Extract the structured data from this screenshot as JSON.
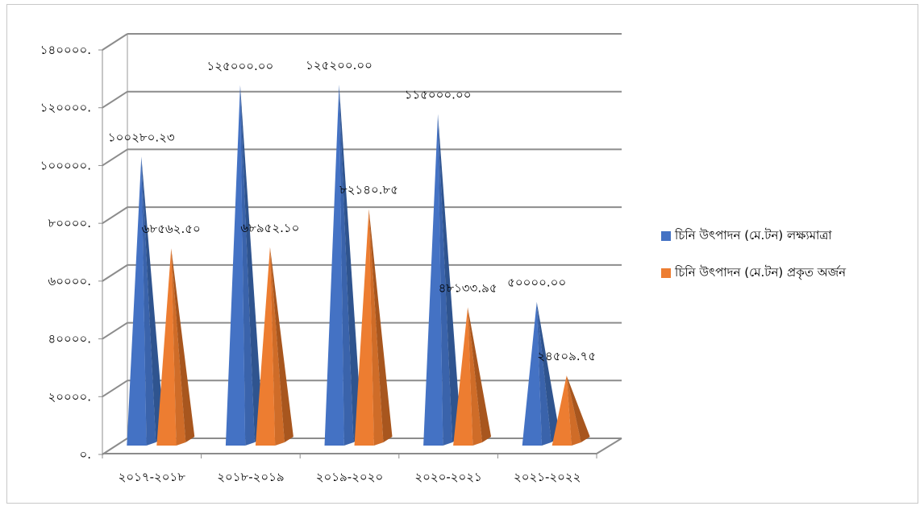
{
  "chart_data": {
    "type": "bar",
    "categories": [
      "২০১৭-২০১৮",
      "২০১৮-২০১৯",
      "২০১৯-২০২০",
      "২০২০-২০২১",
      "২০২১-২০২২"
    ],
    "series": [
      {
        "name": "চিনি উৎপাদন (মে.টন) লক্ষ্যমাত্রা",
        "color": "#4472C4",
        "values": [
          100280.23,
          125000.0,
          125200.0,
          115000.0,
          50000.0
        ],
        "labels": [
          "১০০২৮০.২৩",
          "১২৫০০০.০০",
          "১২৫২০০.০০",
          "১১৫০০০.০০",
          "৫০০০০.০০"
        ]
      },
      {
        "name": "চিনি উৎপাদন (মে.টন) প্রকৃত অর্জন",
        "color": "#ED7D31",
        "values": [
          68562.5,
          68952.1,
          82140.85,
          48133.95,
          24509.75
        ],
        "labels": [
          "৬৮৫৬২.৫০",
          "৬৮৯৫২.১০",
          "৮২১৪০.৮৫",
          "৪৮১৩৩.৯৫",
          "২৪৫০৯.৭৫"
        ]
      }
    ],
    "ylim": [
      0,
      140000
    ],
    "yticks": [
      0,
      20000,
      40000,
      60000,
      80000,
      100000,
      120000,
      140000
    ],
    "ytick_labels": [
      "০.",
      "২০০০০.",
      "৪০০০০.",
      "৬০০০০.",
      "৮০০০০.",
      "১০০০০০.",
      "১২০০০০.",
      "১৪০০০০."
    ],
    "shape": "cone-3d",
    "grid": true,
    "legend_position": "right"
  }
}
